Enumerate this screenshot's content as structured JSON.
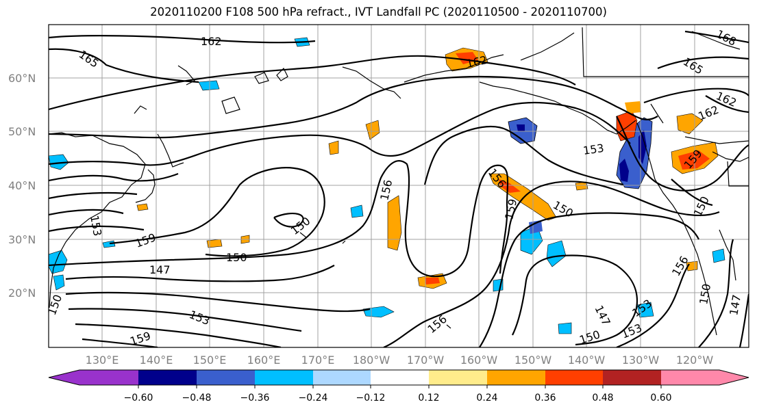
{
  "title": "2020110200 F108 500 hPa refract., IVT Landfall PC (2020110500 - 2020110700)",
  "lat_labels": [
    "60°N",
    "50°N",
    "40°N",
    "30°N",
    "20°N"
  ],
  "lon_labels": [
    "130°E",
    "140°E",
    "150°E",
    "160°E",
    "170°E",
    "180°W",
    "170°W",
    "160°W",
    "150°W",
    "140°W",
    "130°W",
    "120°W"
  ],
  "colorbar": {
    "colors": [
      "#9932cc",
      "#00008b",
      "#3a5fcd",
      "#00bfff",
      "#add8ff",
      "#ffffff",
      "#ffec8b",
      "#ffa500",
      "#ff3f00",
      "#b22222",
      "#ff88aa"
    ],
    "tick_labels": [
      "−0.60",
      "−0.48",
      "−0.36",
      "−0.24",
      "−0.12",
      "0.12",
      "0.24",
      "0.36",
      "0.48",
      "0.60"
    ]
  },
  "contour_labels": [
    "162",
    "165",
    "162",
    "165",
    "168",
    "162",
    "162",
    "153",
    "159",
    "156",
    "156",
    "159",
    "150",
    "150",
    "159",
    "153",
    "147",
    "150",
    "153",
    "159",
    "156",
    "150",
    "153",
    "150",
    "147",
    "153",
    "156",
    "150",
    "147",
    "150"
  ]
}
